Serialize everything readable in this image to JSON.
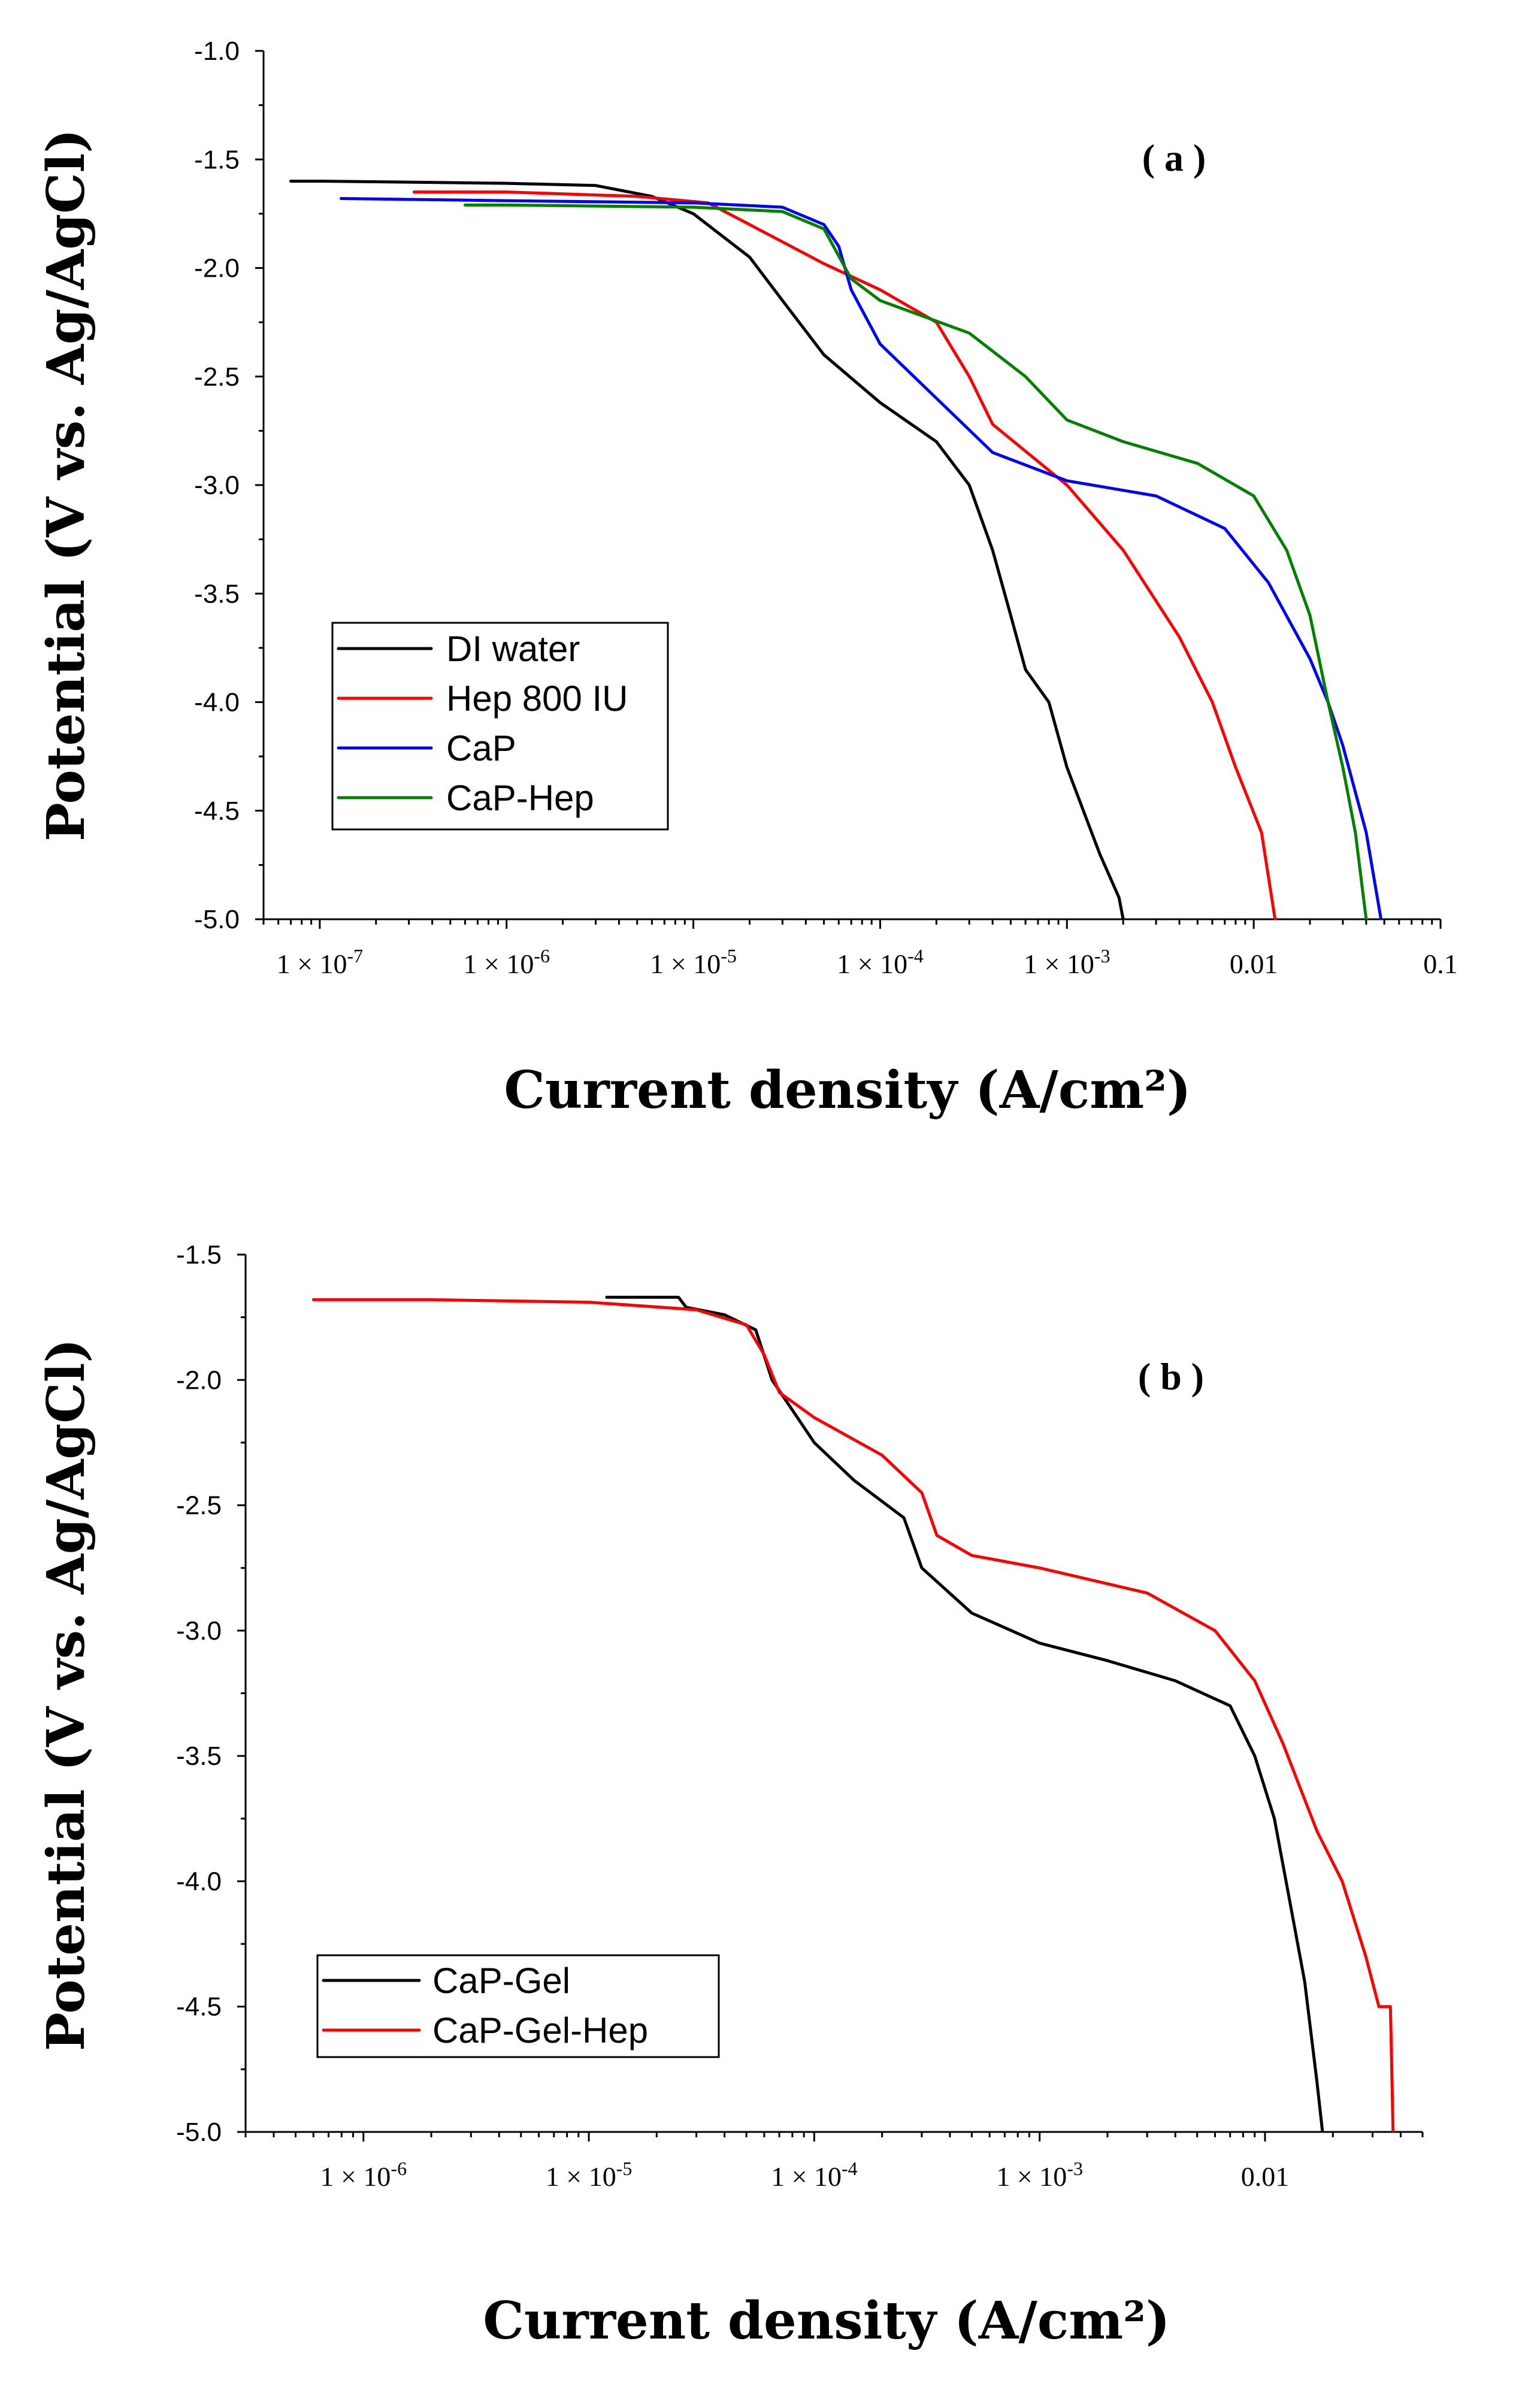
{
  "chart_data": [
    {
      "type": "line",
      "panel_label": "( a )",
      "xlabel": "Current density (A/cm²)",
      "ylabel": "Potential (V vs. Ag/AgCl)",
      "xscale": "log",
      "xlim": [
        5e-08,
        0.1
      ],
      "ylim": [
        -5.0,
        -1.0
      ],
      "x_tick_labels": [
        {
          "base": "1 × 10",
          "exp": "-7",
          "plain": ""
        },
        {
          "base": "1 × 10",
          "exp": "-6",
          "plain": ""
        },
        {
          "base": "1 × 10",
          "exp": "-5",
          "plain": ""
        },
        {
          "base": "1 × 10",
          "exp": "-4",
          "plain": ""
        },
        {
          "base": "1 × 10",
          "exp": "-3",
          "plain": ""
        },
        {
          "base": "",
          "exp": "",
          "plain": "0.01"
        },
        {
          "base": "",
          "exp": "",
          "plain": "0.1"
        }
      ],
      "y_tick_labels": [
        "-1.0",
        "-1.5",
        "-2.0",
        "-2.5",
        "-3.0",
        "-3.5",
        "-4.0",
        "-4.5",
        "-5.0"
      ],
      "legend": {
        "position": "lower-left",
        "entries": [
          "DI water",
          "Hep 800 IU",
          "CaP",
          "CaP-Hep"
        ]
      },
      "series": [
        {
          "name": "DI water",
          "color": "#000000",
          "points": [
            [
              7e-08,
              -1.6
            ],
            [
              1e-07,
              -1.6
            ],
            [
              1e-06,
              -1.61
            ],
            [
              3e-06,
              -1.62
            ],
            [
              6e-06,
              -1.67
            ],
            [
              1e-05,
              -1.75
            ],
            [
              2e-05,
              -1.95
            ],
            [
              3e-05,
              -2.15
            ],
            [
              5e-05,
              -2.4
            ],
            [
              0.0001,
              -2.62
            ],
            [
              0.0002,
              -2.8
            ],
            [
              0.0003,
              -3.0
            ],
            [
              0.0004,
              -3.3
            ],
            [
              0.0005,
              -3.6
            ],
            [
              0.0006,
              -3.85
            ],
            [
              0.0008,
              -4.0
            ],
            [
              0.001,
              -4.3
            ],
            [
              0.0015,
              -4.7
            ],
            [
              0.0019,
              -4.9
            ],
            [
              0.002,
              -5.0
            ]
          ]
        },
        {
          "name": "Hep 800 IU",
          "color": "#ff0000",
          "points": [
            [
              3.2e-07,
              -1.65
            ],
            [
              1e-06,
              -1.65
            ],
            [
              5e-06,
              -1.67
            ],
            [
              1.2e-05,
              -1.7
            ],
            [
              2e-05,
              -1.8
            ],
            [
              5e-05,
              -1.98
            ],
            [
              0.0001,
              -2.1
            ],
            [
              0.0002,
              -2.25
            ],
            [
              0.0003,
              -2.5
            ],
            [
              0.0004,
              -2.72
            ],
            [
              0.001,
              -3.0
            ],
            [
              0.002,
              -3.3
            ],
            [
              0.004,
              -3.7
            ],
            [
              0.006,
              -4.0
            ],
            [
              0.008,
              -4.3
            ],
            [
              0.011,
              -4.6
            ],
            [
              0.013,
              -5.0
            ]
          ]
        },
        {
          "name": "CaP",
          "color": "#0000ff",
          "points": [
            [
              1.3e-07,
              -1.68
            ],
            [
              1e-06,
              -1.69
            ],
            [
              1e-05,
              -1.7
            ],
            [
              3e-05,
              -1.72
            ],
            [
              5e-05,
              -1.8
            ],
            [
              6e-05,
              -1.9
            ],
            [
              7e-05,
              -2.1
            ],
            [
              0.0001,
              -2.35
            ],
            [
              0.0002,
              -2.6
            ],
            [
              0.0004,
              -2.85
            ],
            [
              0.001,
              -2.98
            ],
            [
              0.003,
              -3.05
            ],
            [
              0.007,
              -3.2
            ],
            [
              0.012,
              -3.45
            ],
            [
              0.02,
              -3.8
            ],
            [
              0.025,
              -4.0
            ],
            [
              0.03,
              -4.2
            ],
            [
              0.04,
              -4.6
            ],
            [
              0.048,
              -5.0
            ]
          ]
        },
        {
          "name": "CaP-Hep",
          "color": "#008000",
          "points": [
            [
              6e-07,
              -1.71
            ],
            [
              1e-06,
              -1.71
            ],
            [
              1e-05,
              -1.72
            ],
            [
              3e-05,
              -1.74
            ],
            [
              5e-05,
              -1.82
            ],
            [
              7e-05,
              -2.05
            ],
            [
              0.0001,
              -2.15
            ],
            [
              0.0003,
              -2.3
            ],
            [
              0.0006,
              -2.5
            ],
            [
              0.001,
              -2.7
            ],
            [
              0.002,
              -2.8
            ],
            [
              0.005,
              -2.9
            ],
            [
              0.01,
              -3.05
            ],
            [
              0.015,
              -3.3
            ],
            [
              0.02,
              -3.6
            ],
            [
              0.025,
              -4.0
            ],
            [
              0.03,
              -4.3
            ],
            [
              0.035,
              -4.6
            ],
            [
              0.04,
              -5.0
            ]
          ]
        }
      ]
    },
    {
      "type": "line",
      "panel_label": "( b )",
      "xlabel": "Current density (A/cm²)",
      "ylabel": "Potential (V vs. Ag/AgCl)",
      "xscale": "log",
      "xlim": [
        3e-07,
        0.05
      ],
      "ylim": [
        -5.0,
        -1.5
      ],
      "x_tick_labels": [
        {
          "base": "1 × 10",
          "exp": "-6",
          "plain": ""
        },
        {
          "base": "1 × 10",
          "exp": "-5",
          "plain": ""
        },
        {
          "base": "1 × 10",
          "exp": "-4",
          "plain": ""
        },
        {
          "base": "1 × 10",
          "exp": "-3",
          "plain": ""
        },
        {
          "base": "",
          "exp": "",
          "plain": "0.01"
        }
      ],
      "y_tick_labels": [
        "-1.5",
        "-2.0",
        "-2.5",
        "-3.0",
        "-3.5",
        "-4.0",
        "-4.5",
        "-5.0"
      ],
      "legend": {
        "position": "lower-left",
        "entries": [
          "CaP-Gel",
          "CaP-Gel-Hep"
        ]
      },
      "series": [
        {
          "name": "CaP-Gel",
          "color": "#000000",
          "points": [
            [
              1.2e-05,
              -1.67
            ],
            [
              2.5e-05,
              -1.67
            ],
            [
              2.7e-05,
              -1.71
            ],
            [
              4e-05,
              -1.74
            ],
            [
              5.5e-05,
              -1.8
            ],
            [
              6.5e-05,
              -2.0
            ],
            [
              0.0001,
              -2.25
            ],
            [
              0.00015,
              -2.4
            ],
            [
              0.00025,
              -2.55
            ],
            [
              0.0003,
              -2.75
            ],
            [
              0.0005,
              -2.93
            ],
            [
              0.001,
              -3.05
            ],
            [
              0.002,
              -3.12
            ],
            [
              0.004,
              -3.2
            ],
            [
              0.007,
              -3.3
            ],
            [
              0.009,
              -3.5
            ],
            [
              0.011,
              -3.75
            ],
            [
              0.013,
              -4.1
            ],
            [
              0.015,
              -4.4
            ],
            [
              0.017,
              -4.8
            ],
            [
              0.018,
              -5.0
            ]
          ]
        },
        {
          "name": "CaP-Gel-Hep",
          "color": "#ff0000",
          "points": [
            [
              6e-07,
              -1.68
            ],
            [
              2e-06,
              -1.68
            ],
            [
              1e-05,
              -1.69
            ],
            [
              3e-05,
              -1.72
            ],
            [
              5e-05,
              -1.78
            ],
            [
              6e-05,
              -1.9
            ],
            [
              7e-05,
              -2.05
            ],
            [
              0.0001,
              -2.15
            ],
            [
              0.0002,
              -2.3
            ],
            [
              0.0003,
              -2.45
            ],
            [
              0.00035,
              -2.62
            ],
            [
              0.0005,
              -2.7
            ],
            [
              0.001,
              -2.75
            ],
            [
              0.003,
              -2.85
            ],
            [
              0.006,
              -3.0
            ],
            [
              0.009,
              -3.2
            ],
            [
              0.012,
              -3.45
            ],
            [
              0.017,
              -3.8
            ],
            [
              0.022,
              -4.0
            ],
            [
              0.028,
              -4.3
            ],
            [
              0.032,
              -4.5
            ],
            [
              0.036,
              -4.5
            ],
            [
              0.037,
              -5.0
            ]
          ]
        }
      ]
    }
  ]
}
